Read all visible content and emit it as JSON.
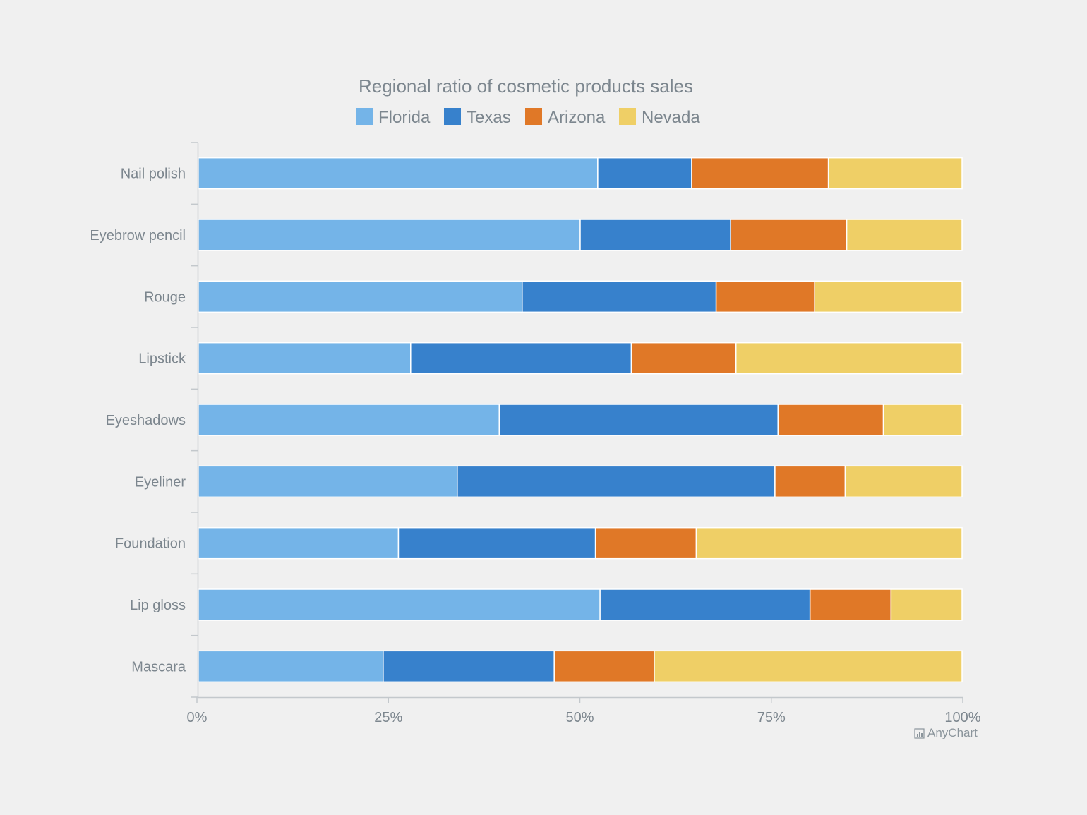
{
  "chart_data": {
    "type": "bar",
    "orientation": "horizontal",
    "stacking": "percent",
    "title": "Regional ratio of cosmetic products sales",
    "categories": [
      "Nail polish",
      "Eyebrow pencil",
      "Rouge",
      "Lipstick",
      "Eyeshadows",
      "Eyeliner",
      "Foundation",
      "Lip gloss",
      "Mascara"
    ],
    "series": [
      {
        "name": "Florida",
        "color": "#74b4e8",
        "values": [
          52.3,
          50.0,
          42.4,
          27.8,
          39.4,
          33.9,
          26.2,
          52.6,
          24.2
        ]
      },
      {
        "name": "Texas",
        "color": "#3781cc",
        "values": [
          12.3,
          19.7,
          25.4,
          28.9,
          36.5,
          41.6,
          25.8,
          27.5,
          22.4
        ]
      },
      {
        "name": "Arizona",
        "color": "#e07827",
        "values": [
          17.9,
          15.2,
          12.9,
          13.7,
          13.8,
          9.2,
          13.2,
          10.6,
          13.1
        ]
      },
      {
        "name": "Nevada",
        "color": "#efcf66",
        "values": [
          17.5,
          15.1,
          19.3,
          29.6,
          10.3,
          15.3,
          34.8,
          9.3,
          40.3
        ]
      }
    ],
    "x_axis": {
      "ticks": [
        "0%",
        "25%",
        "50%",
        "75%",
        "100%"
      ],
      "range": [
        0,
        100
      ]
    },
    "legend_position": "top",
    "grid": false
  },
  "credit": "AnyChart"
}
